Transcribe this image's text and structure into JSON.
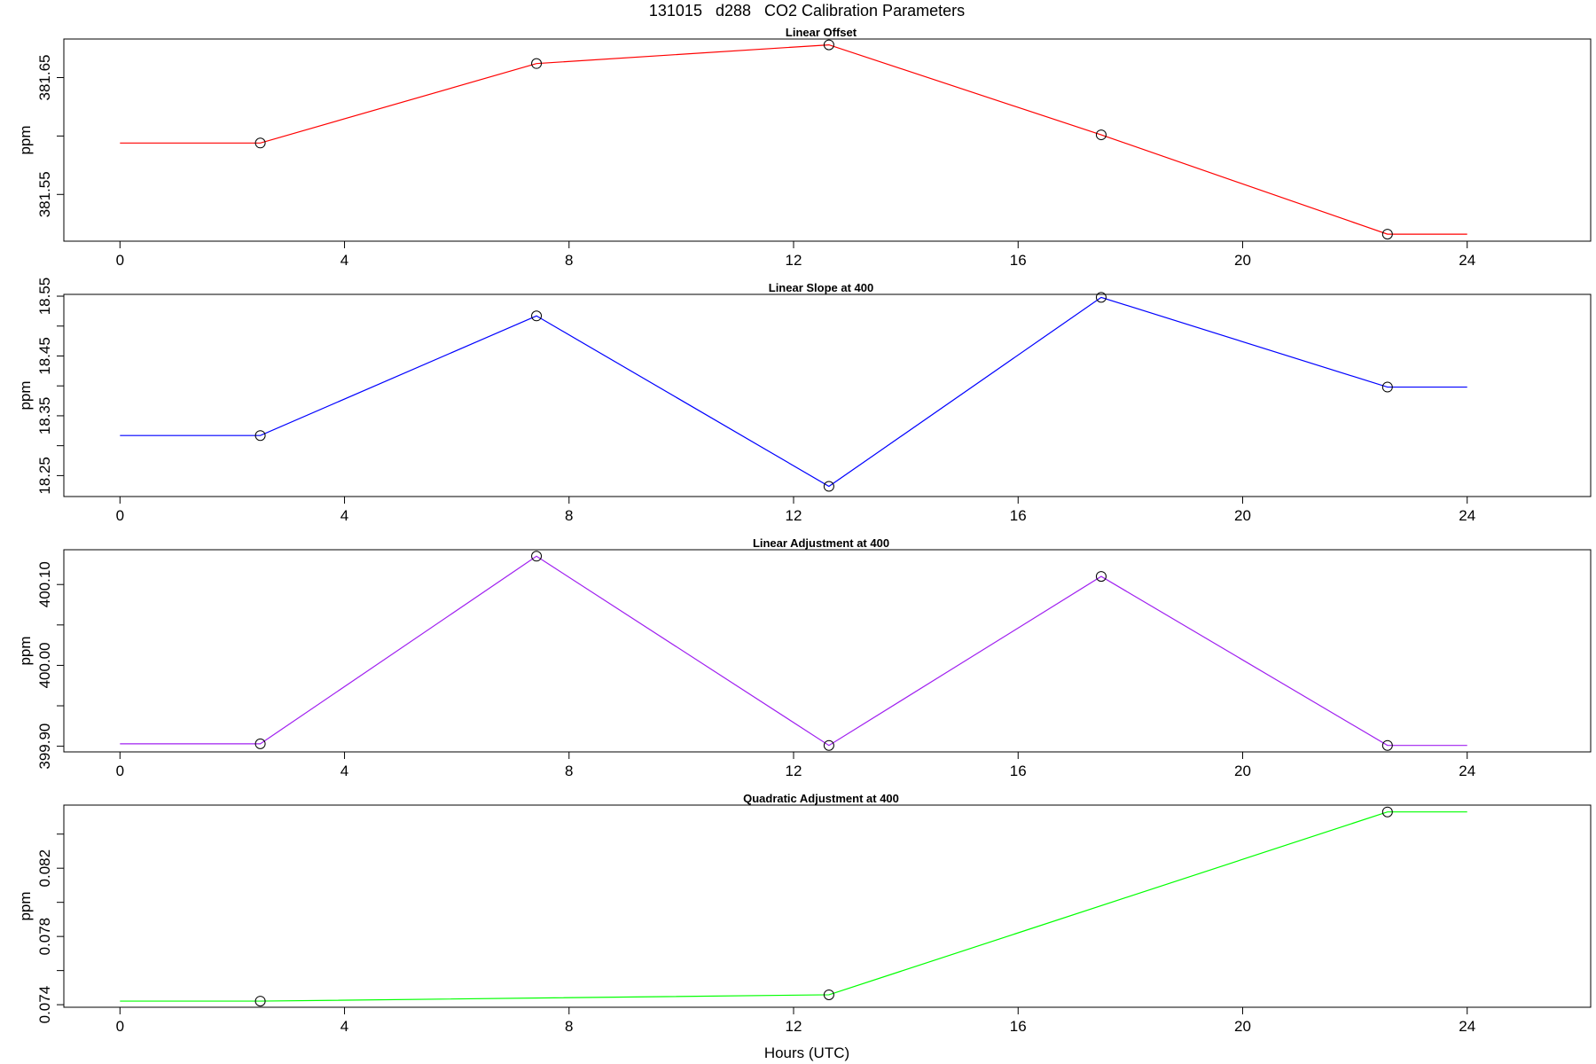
{
  "figure": {
    "title": "131015   d288   CO2 Calibration Parameters",
    "xlabel": "Hours (UTC)"
  },
  "chart_data": [
    {
      "type": "line",
      "title": "Linear Offset",
      "xlabel": "",
      "ylabel": "ppm",
      "color": "#ff0000",
      "xlim": [
        -1,
        26.2
      ],
      "ylim": [
        381.51,
        381.683
      ],
      "xticks": [
        0,
        4,
        8,
        12,
        16,
        20,
        24
      ],
      "xtick_labels": [
        "0",
        "4",
        "8",
        "12",
        "16",
        "20",
        "24"
      ],
      "yticks": [
        381.55,
        381.6,
        381.65
      ],
      "ytick_labels": [
        "381.55",
        "",
        "381.65"
      ],
      "line_x": [
        0,
        2.5,
        7.42,
        12.63,
        17.48,
        22.58,
        24
      ],
      "line_y": [
        381.594,
        381.594,
        381.662,
        381.678,
        381.601,
        381.516,
        381.516
      ],
      "points_x": [
        2.5,
        7.42,
        12.63,
        17.48,
        22.58
      ],
      "points_y": [
        381.594,
        381.662,
        381.678,
        381.601,
        381.516
      ]
    },
    {
      "type": "line",
      "title": "Linear Slope at 400",
      "xlabel": "",
      "ylabel": "ppm",
      "color": "#0000ff",
      "xlim": [
        -1,
        26.2
      ],
      "ylim": [
        18.215,
        18.553
      ],
      "xticks": [
        0,
        4,
        8,
        12,
        16,
        20,
        24
      ],
      "xtick_labels": [
        "0",
        "4",
        "8",
        "12",
        "16",
        "20",
        "24"
      ],
      "yticks": [
        18.25,
        18.3,
        18.35,
        18.4,
        18.45,
        18.5,
        18.55
      ],
      "ytick_labels": [
        "18.25",
        "",
        "18.35",
        "",
        "18.45",
        "",
        "18.55"
      ],
      "line_x": [
        0,
        2.5,
        7.42,
        12.63,
        17.48,
        22.58,
        24
      ],
      "line_y": [
        18.317,
        18.317,
        18.517,
        18.232,
        18.548,
        18.398,
        18.398
      ],
      "points_x": [
        2.5,
        7.42,
        12.63,
        17.48,
        22.58
      ],
      "points_y": [
        18.317,
        18.517,
        18.232,
        18.548,
        18.398
      ]
    },
    {
      "type": "line",
      "title": "Linear Adjustment at 400",
      "xlabel": "",
      "ylabel": "ppm",
      "color": "#a020f0",
      "xlim": [
        -1,
        26.2
      ],
      "ylim": [
        399.893,
        400.143
      ],
      "xticks": [
        0,
        4,
        8,
        12,
        16,
        20,
        24
      ],
      "xtick_labels": [
        "0",
        "4",
        "8",
        "12",
        "16",
        "20",
        "24"
      ],
      "yticks": [
        399.9,
        399.95,
        400.0,
        400.05,
        400.1
      ],
      "ytick_labels": [
        "399.90",
        "",
        "400.00",
        "",
        "400.10"
      ],
      "line_x": [
        0,
        2.5,
        7.42,
        12.63,
        17.48,
        22.58,
        24
      ],
      "line_y": [
        399.903,
        399.903,
        400.135,
        399.901,
        400.11,
        399.901,
        399.901
      ],
      "points_x": [
        2.5,
        7.42,
        12.63,
        17.48,
        22.58
      ],
      "points_y": [
        399.903,
        400.135,
        399.901,
        400.11,
        399.901
      ]
    },
    {
      "type": "line",
      "title": "Quadratic Adjustment at 400",
      "xlabel": "Hours (UTC)",
      "ylabel": "ppm",
      "color": "#00ff00",
      "xlim": [
        -1,
        26.2
      ],
      "ylim": [
        0.07385,
        0.0857
      ],
      "xticks": [
        0,
        4,
        8,
        12,
        16,
        20,
        24
      ],
      "xtick_labels": [
        "0",
        "4",
        "8",
        "12",
        "16",
        "20",
        "24"
      ],
      "yticks": [
        0.074,
        0.076,
        0.078,
        0.08,
        0.082,
        0.084
      ],
      "ytick_labels": [
        "0.074",
        "",
        "0.078",
        "",
        "0.082",
        ""
      ],
      "line_x": [
        0,
        2.5,
        12.63,
        22.58,
        24
      ],
      "line_y": [
        0.07421,
        0.07421,
        0.07458,
        0.0853,
        0.0853
      ],
      "points_x": [
        2.5,
        12.63,
        22.58
      ],
      "points_y": [
        0.07421,
        0.07458,
        0.0853
      ]
    }
  ]
}
